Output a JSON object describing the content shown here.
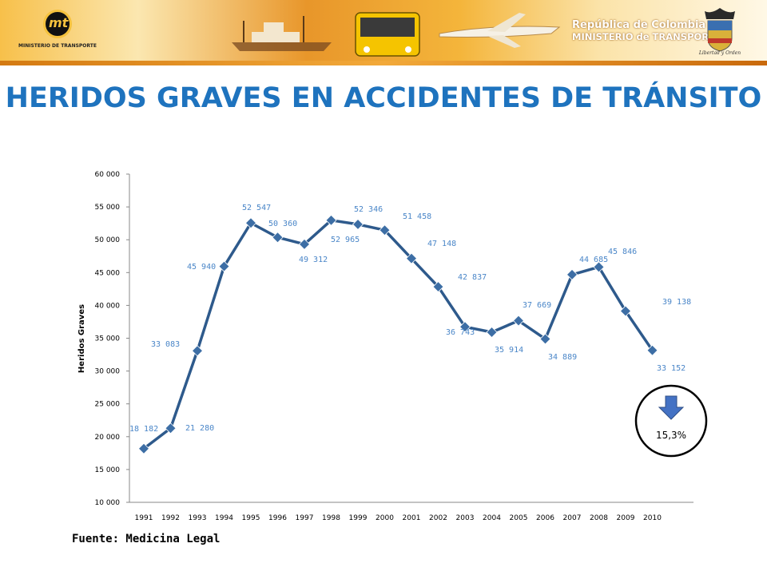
{
  "header": {
    "logo_caption": "MINISTERIO DE TRANSPORTE",
    "ministry_line1": "República de Colombia",
    "ministry_line2": "MINISTERIO de TRANSPORTE",
    "crest_caption": "Libertad y Orden"
  },
  "title": "HERIDOS GRAVES EN ACCIDENTES DE TRÁNSITO",
  "source": "Fuente: Medicina Legal",
  "chart_data": {
    "type": "line",
    "ylabel": "Heridos Graves",
    "xlabel": "",
    "ylim": [
      10000,
      60000
    ],
    "yticks": [
      10000,
      15000,
      20000,
      25000,
      30000,
      35000,
      40000,
      45000,
      50000,
      55000,
      60000
    ],
    "ytick_labels": [
      "10 000",
      "15 000",
      "20 000",
      "25 000",
      "30 000",
      "35 000",
      "40 000",
      "45 000",
      "50 000",
      "55 000",
      "60 000"
    ],
    "categories": [
      "1991",
      "1992",
      "1993",
      "1994",
      "1995",
      "1996",
      "1997",
      "1998",
      "1999",
      "2000",
      "2001",
      "2002",
      "2003",
      "2004",
      "2005",
      "2006",
      "2007",
      "2008",
      "2009",
      "2010"
    ],
    "values": [
      18182,
      21280,
      33083,
      45940,
      52547,
      50360,
      49312,
      52965,
      52346,
      51458,
      47148,
      42837,
      36743,
      35914,
      37669,
      34889,
      44685,
      45846,
      39138,
      33152
    ],
    "data_labels": [
      "18 182",
      "21 280",
      "33 083",
      "45 940",
      "52 547",
      "50 360",
      "49 312",
      "52 965",
      "52 346",
      "51 458",
      "47 148",
      "42 837",
      "36 743",
      "35 914",
      "37 669",
      "34 889",
      "44 685",
      "45 846",
      "39 138",
      "33 152"
    ],
    "line_color": "#2e5a8c",
    "marker_color": "#3d6ea5",
    "grid": false,
    "annotation": {
      "text": "15,3%",
      "icon": "arrow-down-icon",
      "arrow_color": "#4472c4"
    }
  }
}
